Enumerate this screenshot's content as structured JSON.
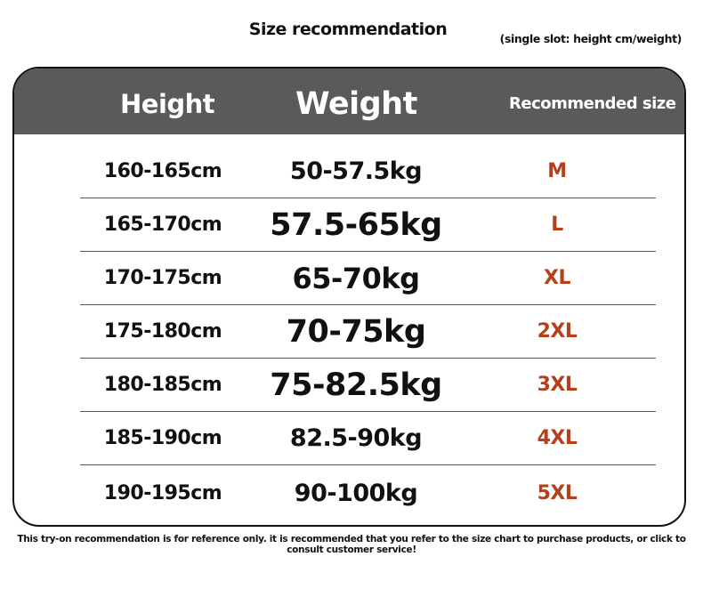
{
  "title": "Size recommendation",
  "subtitle": "(single slot: height cm/weight)",
  "table": {
    "headers": {
      "height": "Height",
      "weight": "Weight",
      "size": "Recommended size"
    },
    "rows": [
      {
        "height": "160-165cm",
        "weight": "50-57.5kg",
        "size": "M"
      },
      {
        "height": "165-170cm",
        "weight": "57.5-65kg",
        "size": "L"
      },
      {
        "height": "170-175cm",
        "weight": "65-70kg",
        "size": "XL"
      },
      {
        "height": "175-180cm",
        "weight": "70-75kg",
        "size": "2XL"
      },
      {
        "height": "180-185cm",
        "weight": "75-82.5kg",
        "size": "3XL"
      },
      {
        "height": "185-190cm",
        "weight": "82.5-90kg",
        "size": "4XL"
      },
      {
        "height": "190-195cm",
        "weight": "90-100kg",
        "size": "5XL"
      }
    ]
  },
  "note": "This try-on recommendation is for reference only. it is recommended that you refer to the size chart to purchase products, or click to consult customer service!",
  "colors": {
    "header_bg": "#5a5a5a",
    "size_text": "#b5401a"
  }
}
